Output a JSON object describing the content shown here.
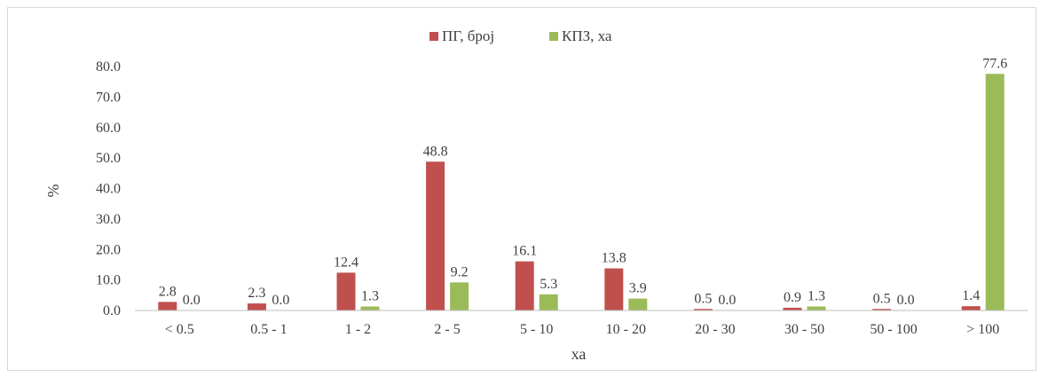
{
  "chart_data": {
    "type": "bar",
    "categories": [
      "< 0.5",
      "0.5 - 1",
      "1 - 2",
      "2 - 5",
      "5 - 10",
      "10 - 20",
      "20 - 30",
      "30 - 50",
      "50 - 100",
      "> 100"
    ],
    "series": [
      {
        "name": "ПГ, број",
        "color": "#c0504d",
        "values": [
          2.8,
          2.3,
          12.4,
          48.8,
          16.1,
          13.8,
          0.5,
          0.9,
          0.5,
          1.4
        ],
        "labels": [
          "2.8",
          "2.3",
          "12.4",
          "48.8",
          "16.1",
          "13.8",
          "0.5",
          "0.9",
          "0.5",
          "1.4"
        ]
      },
      {
        "name": "КПЗ, ха",
        "color": "#9bbb59",
        "values": [
          0.0,
          0.0,
          1.3,
          9.2,
          5.3,
          3.9,
          0.0,
          1.3,
          0.0,
          77.6
        ],
        "labels": [
          "0.0",
          "0.0",
          "1.3",
          "9.2",
          "5.3",
          "3.9",
          "0.0",
          "1.3",
          "0.0",
          "77.6"
        ]
      }
    ],
    "xlabel": "ха",
    "ylabel": "%",
    "ylim": [
      0,
      80
    ],
    "yticks": [
      "0.0",
      "10.0",
      "20.0",
      "30.0",
      "40.0",
      "50.0",
      "60.0",
      "70.0",
      "80.0"
    ],
    "grid": false,
    "legend": "top-center"
  }
}
